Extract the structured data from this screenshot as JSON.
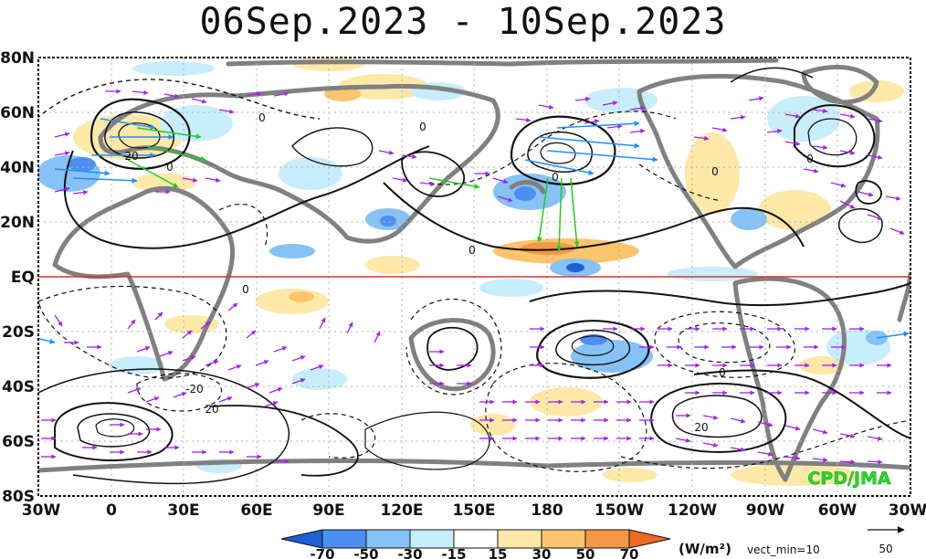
{
  "title": "06Sep.2023 - 10Sep.2023",
  "credit": "CPD/JMA",
  "lat_labels": [
    "80N",
    "60N",
    "40N",
    "20N",
    "EQ",
    "20S",
    "40S",
    "60S",
    "80S"
  ],
  "lon_labels": [
    "30W",
    "0",
    "30E",
    "60E",
    "90E",
    "120E",
    "150E",
    "180",
    "150W",
    "120W",
    "90W",
    "60W",
    "30W"
  ],
  "contour_labels": [
    "0",
    "0",
    "0",
    "0",
    "0",
    "0",
    "0",
    "0",
    "0",
    "20",
    "20",
    "20",
    "-20"
  ],
  "colorbar": {
    "ticks": [
      "-70",
      "-50",
      "-30",
      "-15",
      "15",
      "30",
      "50",
      "70"
    ],
    "colors": [
      "#1f5fd6",
      "#4d8ff0",
      "#86c2f5",
      "#c7eefa",
      "#ffffff",
      "#fde8a8",
      "#fbc46d",
      "#f59846",
      "#ef6a21"
    ],
    "unit": "(W/m²)",
    "vect_min": "vect_min=10"
  },
  "reference_vector": {
    "value": "50"
  },
  "colors": {
    "equator": "#e23030",
    "land": "#808080",
    "credit": "#22dd22",
    "vectors": "#a020f0",
    "grid": "#b0b0b0"
  }
}
